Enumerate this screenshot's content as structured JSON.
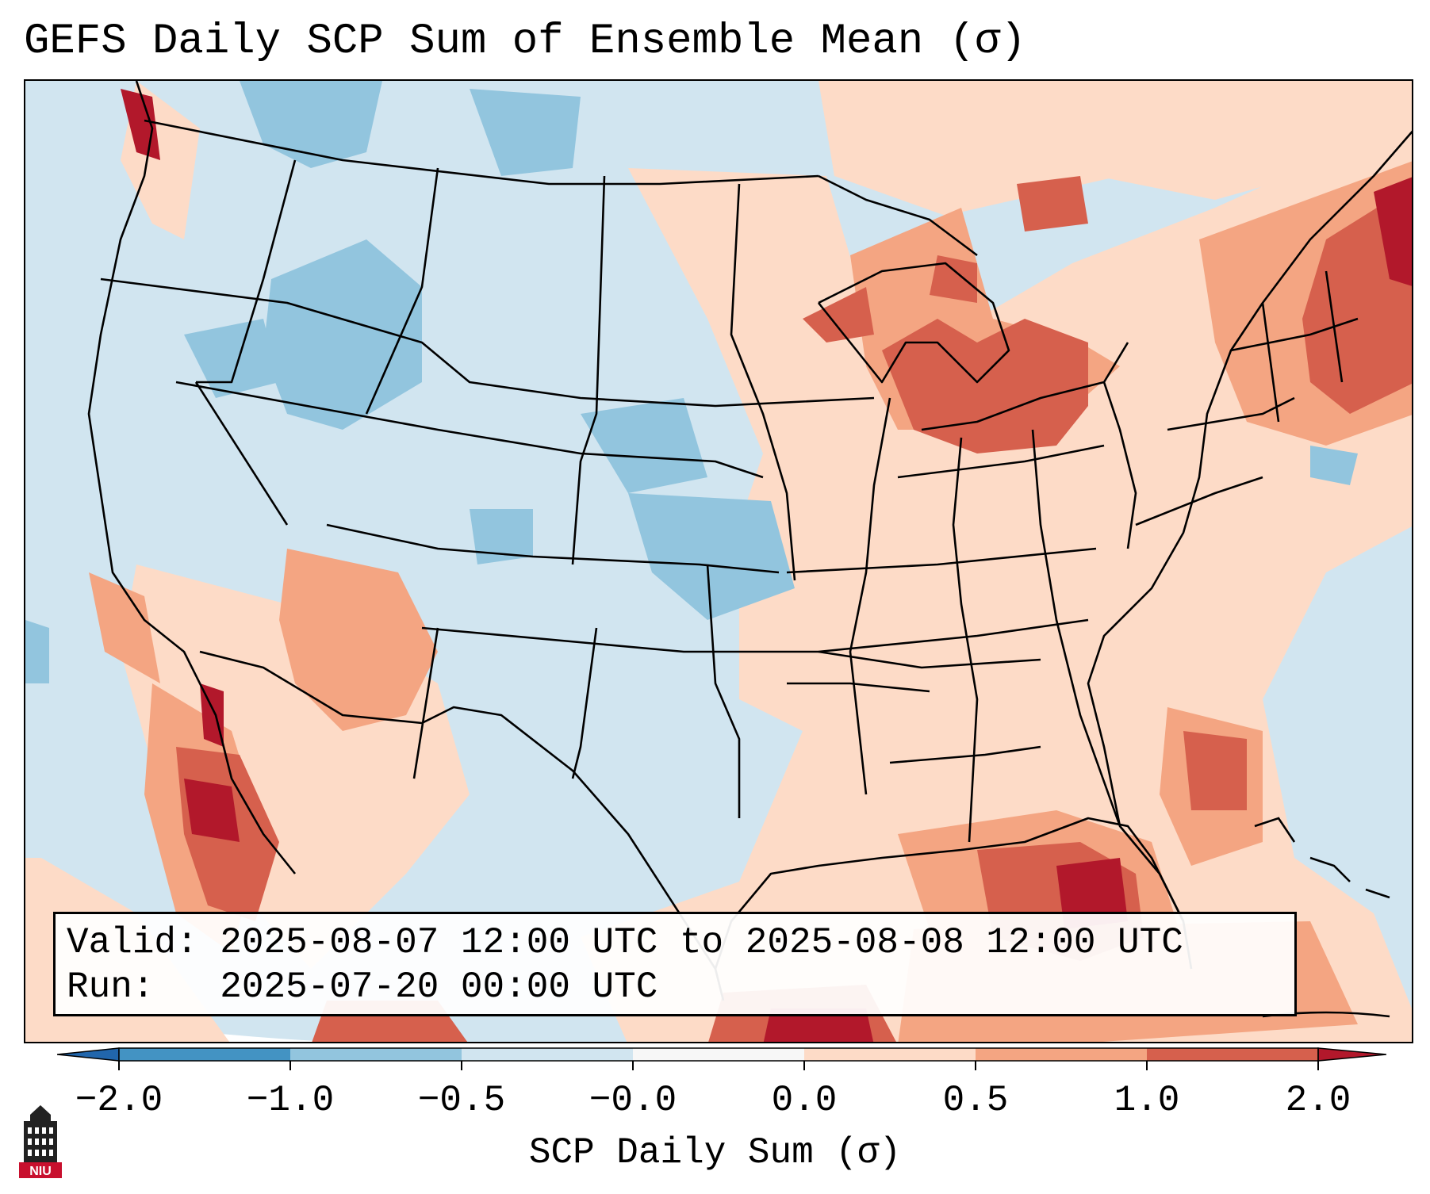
{
  "title": "GEFS Daily SCP Sum of Ensemble Mean (σ)",
  "info": {
    "valid_label": "Valid:",
    "valid_value": "2025-08-07 12:00 UTC to 2025-08-08 12:00 UTC",
    "run_label": "Run:",
    "run_value": "2025-07-20 00:00 UTC"
  },
  "colorbar": {
    "label": "SCP Daily Sum (σ)",
    "ticks": [
      "−2.0",
      "−1.0",
      "−0.5",
      "−0.0",
      "0.0",
      "0.5",
      "1.0",
      "2.0"
    ],
    "colors": [
      "#4393c3",
      "#92c5de",
      "#d1e5f0",
      "#f7f7f7",
      "#fddbc7",
      "#f4a582",
      "#d6604d",
      "#b2182b"
    ],
    "extend_low_color": "#2166ac",
    "extend_high_color": "#b2182b"
  },
  "logo": {
    "text": "NIU"
  },
  "icons": {
    "logo": "niu-tower-logo-icon"
  }
}
